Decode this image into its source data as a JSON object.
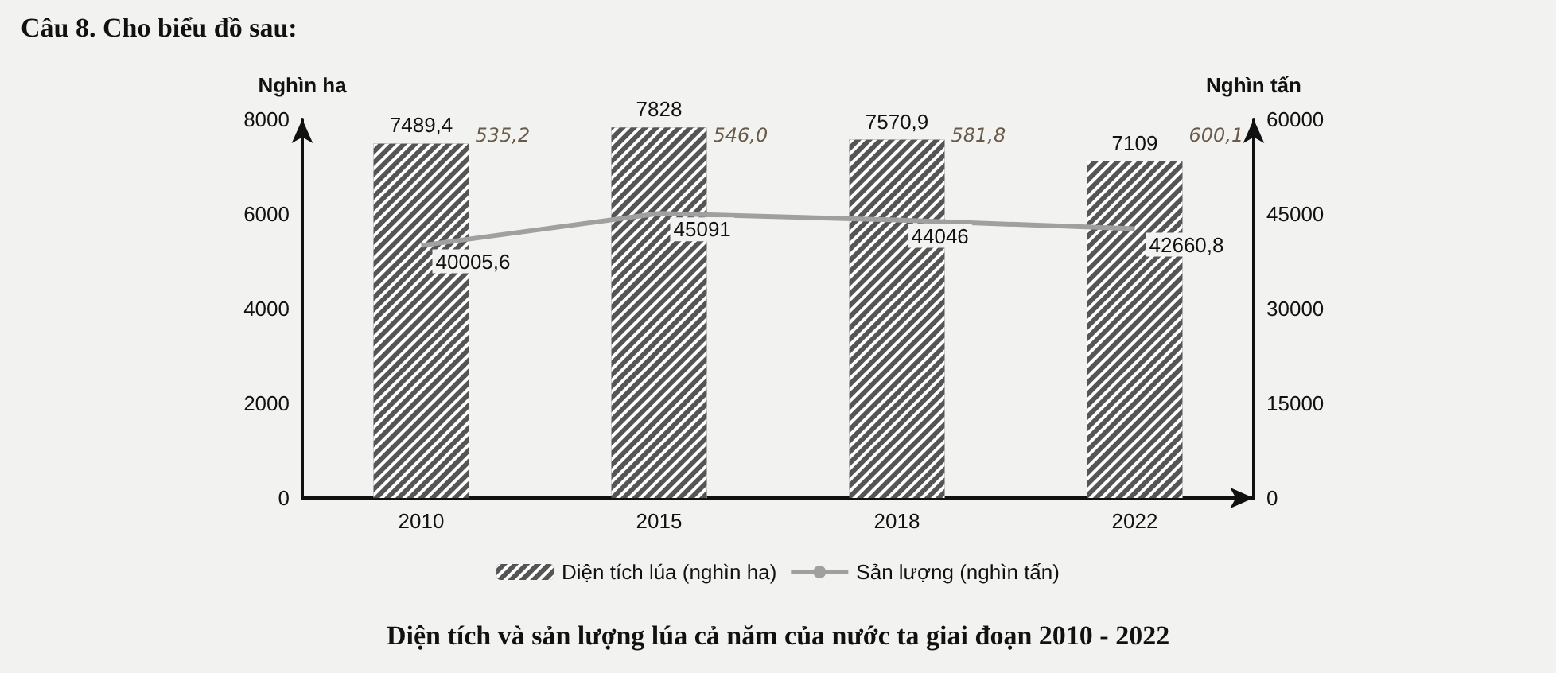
{
  "chart_data": {
    "type": "bar",
    "title": "Câu 8. Cho biểu đồ sau:",
    "subtitle": "Diện tích và sản lượng lúa cả năm của nước ta giai đoạn 2010 - 2022",
    "ylabel": "Nghìn ha",
    "y2label": "Nghìn tấn",
    "categories": [
      "2010",
      "2015",
      "2018",
      "2022"
    ],
    "series": [
      {
        "name": "Diện tích lúa (nghìn ha)",
        "color": "#555555",
        "values": [
          7489.4,
          7828,
          7570.9,
          7109
        ],
        "value_labels": [
          "7489,4",
          "7828",
          "7570,9",
          "7109"
        ]
      },
      {
        "name": "Sản lượng (nghìn tấn)",
        "type": "line",
        "axis": "y2",
        "color": "#a0a0a0",
        "values": [
          40005.6,
          45091,
          44046,
          42660.8
        ],
        "value_labels": [
          "40005,6",
          "45091",
          "44046",
          "42660,8"
        ]
      }
    ],
    "ylim": [
      0,
      8000
    ],
    "yticks": [
      0,
      2000,
      4000,
      6000,
      8000
    ],
    "y2lim": [
      0,
      60000
    ],
    "y2ticks": [
      0,
      15000,
      30000,
      45000,
      60000
    ],
    "annotations": [
      "535,2",
      "546,0",
      "581,8",
      "600,1"
    ],
    "legend": "bottom",
    "grid": false,
    "marker": "none",
    "line_style": "solid"
  }
}
